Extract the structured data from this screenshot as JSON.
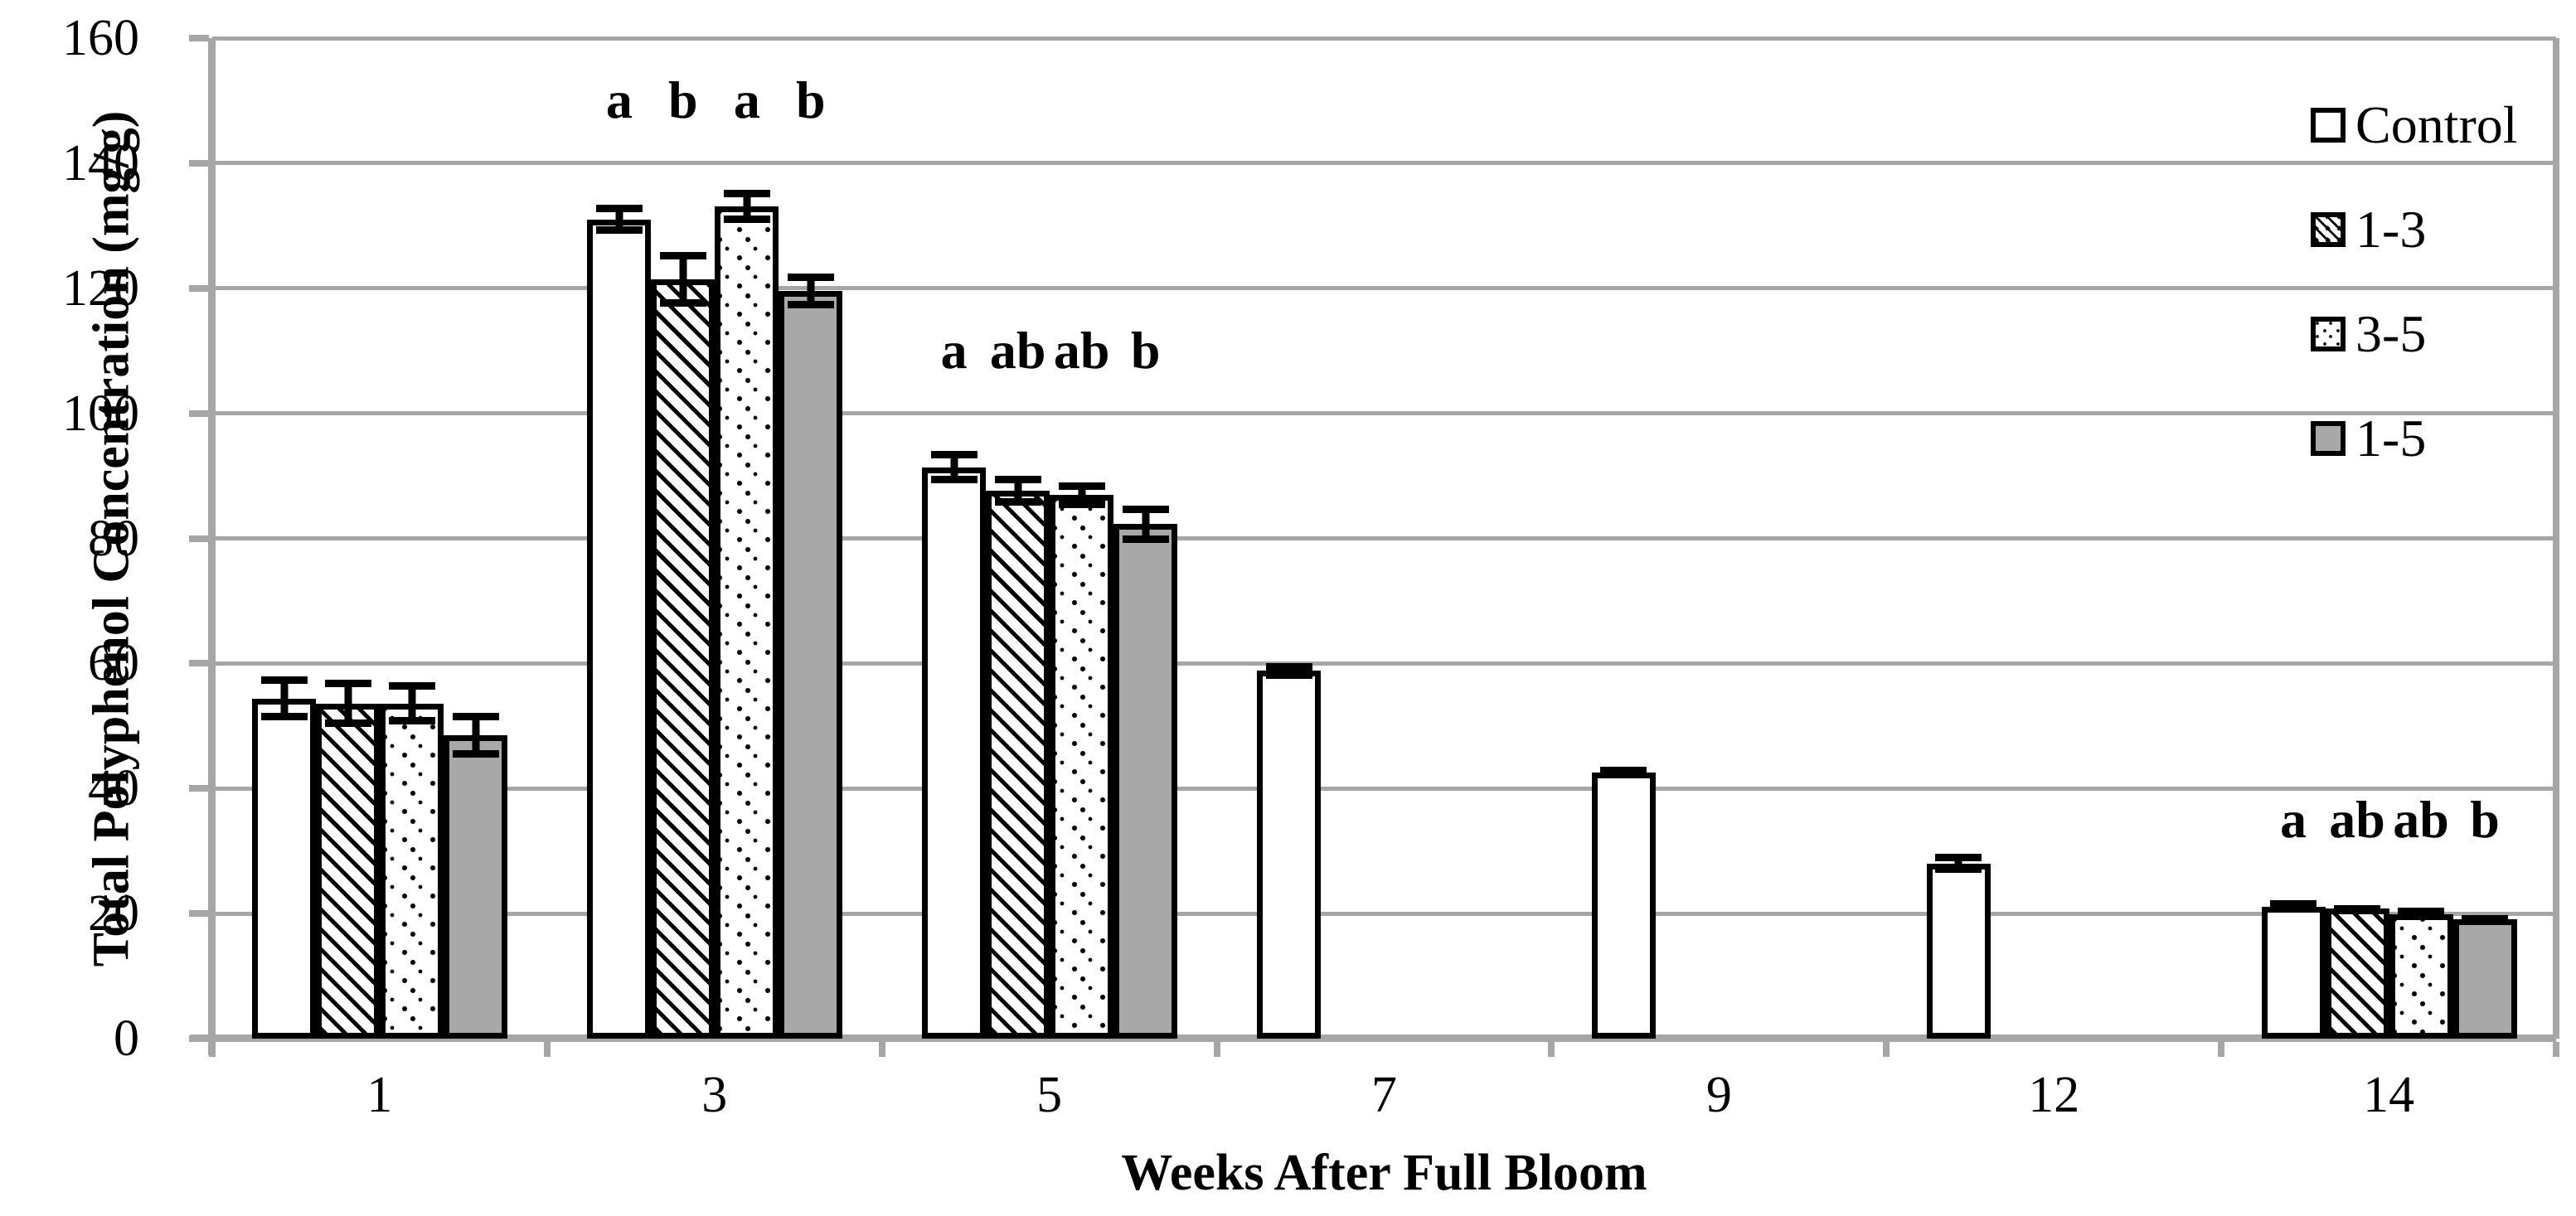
{
  "chart_data": {
    "type": "bar",
    "title": "",
    "xlabel": "Weeks After Full Bloom",
    "ylabel": "Total Polyphenol Concentration (mg/g)",
    "ylim": [
      0,
      160
    ],
    "yticks": [
      0,
      20,
      40,
      60,
      80,
      100,
      120,
      140,
      160
    ],
    "grid": "horizontal-gray",
    "categories": [
      "1",
      "3",
      "5",
      "7",
      "9",
      "12",
      "14"
    ],
    "series": [
      {
        "name": "Control",
        "pattern": "white",
        "values": [
          54.4,
          131.0,
          91.4,
          58.8,
          42.6,
          28.0,
          21.1
        ],
        "errors": [
          3.5,
          2.3,
          2.6,
          1.3,
          0.9,
          1.5,
          1.0
        ]
      },
      {
        "name": "1-3",
        "pattern": "diagonal-hatch",
        "values": [
          53.6,
          121.4,
          87.6,
          null,
          null,
          null,
          20.8
        ],
        "errors": [
          3.8,
          4.4,
          2.4,
          null,
          null,
          null,
          0.6
        ]
      },
      {
        "name": "3-5",
        "pattern": "dotted",
        "values": [
          53.6,
          133.1,
          86.9,
          null,
          null,
          null,
          19.9
        ],
        "errors": [
          3.4,
          2.6,
          2.1,
          null,
          null,
          null,
          1.0
        ]
      },
      {
        "name": "1-5",
        "pattern": "solid-gray",
        "values": [
          48.5,
          119.6,
          82.3,
          null,
          null,
          null,
          19.1
        ],
        "errors": [
          3.6,
          2.8,
          3.0,
          null,
          null,
          null,
          0.6
        ]
      }
    ],
    "significance_letters": [
      {
        "category": "3",
        "category_index": 1,
        "letters": [
          "a",
          "b",
          "a",
          "b"
        ],
        "y": 150
      },
      {
        "category": "5",
        "category_index": 2,
        "letters": [
          "a",
          "ab",
          "ab",
          "b"
        ],
        "y": 110
      },
      {
        "category": "14",
        "category_index": 6,
        "letters": [
          "a",
          "ab",
          "ab",
          "b"
        ],
        "y": 35
      }
    ],
    "legend": {
      "position": "top-right-inside-plot",
      "entries": [
        "Control",
        "1-3",
        "3-5",
        "1-5"
      ]
    },
    "colors": {
      "axis": "#a6a6a6",
      "gridline": "#a6a6a6",
      "bar_border": "#000000",
      "gray_fill": "#a8a8a8",
      "background": "#ffffff",
      "text": "#000000"
    }
  }
}
